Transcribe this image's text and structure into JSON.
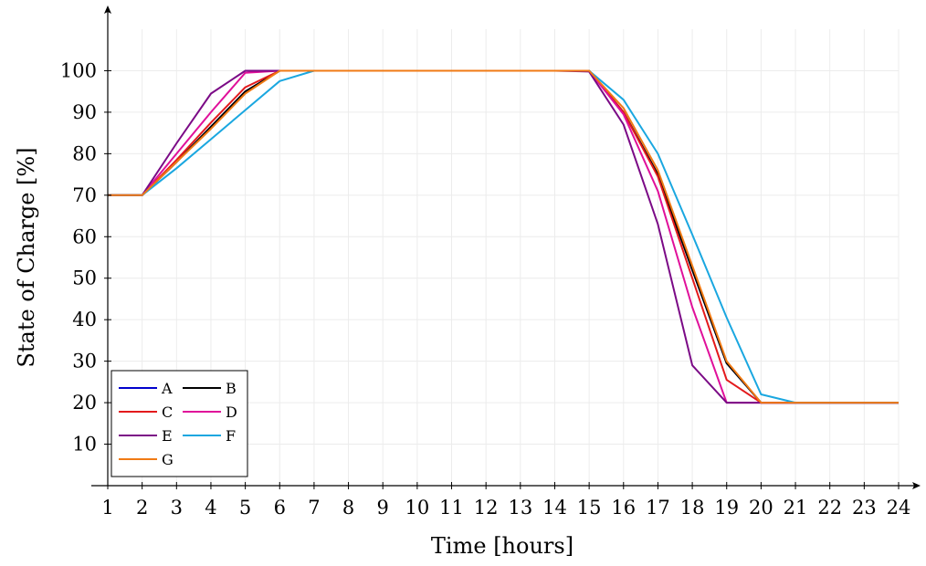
{
  "chart_data": {
    "type": "line",
    "xlabel": "Time [hours]",
    "ylabel": "State of Charge [%]",
    "xlim": [
      1,
      24
    ],
    "ylim": [
      0,
      110
    ],
    "x_ticks": [
      1,
      2,
      3,
      4,
      5,
      6,
      7,
      8,
      9,
      10,
      11,
      12,
      13,
      14,
      15,
      16,
      17,
      18,
      19,
      20,
      21,
      22,
      23,
      24
    ],
    "y_ticks": [
      10,
      20,
      30,
      40,
      50,
      60,
      70,
      80,
      90,
      100
    ],
    "grid": true,
    "legend_position": "bottom-left",
    "x": [
      1,
      2,
      3,
      4,
      5,
      6,
      7,
      8,
      9,
      10,
      11,
      12,
      13,
      14,
      15,
      16,
      17,
      18,
      19,
      20,
      21,
      22,
      23,
      24
    ],
    "series": [
      {
        "name": "A",
        "color": "#0000cc",
        "values": [
          70,
          70,
          78,
          86.5,
          95,
          100,
          100,
          100,
          100,
          100,
          100,
          100,
          100,
          100,
          100,
          90,
          75,
          52,
          29.5,
          20,
          20,
          20,
          20,
          20
        ]
      },
      {
        "name": "B",
        "color": "#000000",
        "values": [
          70,
          70,
          78,
          86.5,
          95,
          100,
          100,
          100,
          100,
          100,
          100,
          100,
          100,
          100,
          100,
          90,
          75,
          52,
          29.5,
          20,
          20,
          20,
          20,
          20
        ]
      },
      {
        "name": "C",
        "color": "#e31a1c",
        "values": [
          70,
          70,
          78.5,
          87.5,
          96,
          100,
          100,
          100,
          100,
          100,
          100,
          100,
          100,
          100,
          100,
          90,
          74.5,
          50,
          25.5,
          20,
          20,
          20,
          20,
          20
        ]
      },
      {
        "name": "D",
        "color": "#e0109a",
        "values": [
          70,
          70,
          80,
          90,
          99.5,
          100,
          100,
          100,
          100,
          100,
          100,
          100,
          100,
          100,
          100,
          89.5,
          71,
          43,
          20,
          20,
          20,
          20,
          20,
          20
        ]
      },
      {
        "name": "E",
        "color": "#7b0a86",
        "values": [
          70,
          70,
          82.5,
          94.5,
          100,
          100,
          100,
          100,
          100,
          100,
          100,
          100,
          100,
          100,
          99.8,
          87,
          63,
          29,
          20,
          20,
          20,
          20,
          20,
          20
        ]
      },
      {
        "name": "F",
        "color": "#1aa7e0",
        "values": [
          70,
          70,
          76.5,
          83.5,
          90.5,
          97.5,
          100,
          100,
          100,
          100,
          100,
          100,
          100,
          100,
          100,
          93,
          80,
          60.5,
          40.5,
          22,
          20,
          20,
          20,
          20
        ]
      },
      {
        "name": "G",
        "color": "#f07a14",
        "values": [
          70,
          70,
          78,
          86,
          94.5,
          100,
          100,
          100,
          100,
          100,
          100,
          100,
          100,
          100,
          100,
          91,
          76,
          53,
          30,
          20,
          20,
          20,
          20,
          20
        ]
      }
    ]
  }
}
